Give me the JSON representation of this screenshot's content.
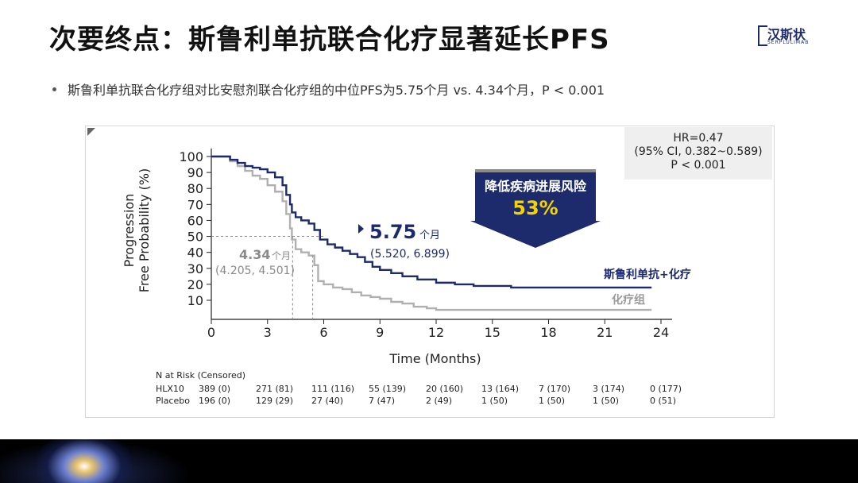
{
  "header": {
    "title": "次要终点：斯鲁利单抗联合化疗显著延长PFS",
    "logo_text": "汉斯状",
    "logo_sub": "SERPLULIMAB"
  },
  "bullet": {
    "text": "斯鲁利单抗联合化疗组对比安慰剂联合化疗组的中位PFS为5.75个月 vs. 4.34个月，P < 0.001"
  },
  "hr_box": {
    "line1": "HR=0.47",
    "line2": "(95% CI, 0.382~0.589)",
    "line3": "P  < 0.001"
  },
  "banner": {
    "line1": "降低疾病进展风险",
    "line2": "53%",
    "color": "#1d2a6b"
  },
  "colors": {
    "hlx10": "#1d2a6b",
    "placebo": "#b0b0b0",
    "label_hlx10": "#1d2a6b",
    "label_placebo": "#9a9a9a"
  },
  "chart_data": {
    "type": "line",
    "xlabel": "Time (Months)",
    "ylabel": "Progression Free Probability (%)",
    "ylabel_line1": "Progression",
    "ylabel_line2": "Free Probability (%)",
    "x_ticks": [
      0,
      3,
      6,
      9,
      12,
      15,
      18,
      21,
      24
    ],
    "y_ticks": [
      10,
      20,
      30,
      40,
      50,
      60,
      70,
      80,
      90,
      100
    ],
    "xlim": [
      0,
      24
    ],
    "ylim": [
      0,
      100
    ],
    "series": [
      {
        "name": "斯鲁利单抗+化疗",
        "x": [
          0,
          0.5,
          1.0,
          1.4,
          1.8,
          2.2,
          2.6,
          3.0,
          3.4,
          3.8,
          4.0,
          4.2,
          4.3,
          4.5,
          4.8,
          5.2,
          5.5,
          5.8,
          6.2,
          6.6,
          7.0,
          7.4,
          7.8,
          8.2,
          8.6,
          9.0,
          9.6,
          10.2,
          11.0,
          12.0,
          13.0,
          14.0,
          15.0,
          16.0,
          18.0,
          20.0,
          22.0,
          23.5
        ],
        "y": [
          100,
          100,
          98,
          96,
          94,
          93,
          92,
          90,
          87,
          82,
          76,
          70,
          65,
          62,
          60,
          58,
          54,
          48,
          45,
          43,
          41,
          39,
          37,
          34,
          31,
          29,
          27,
          25,
          23,
          21,
          20,
          19,
          19,
          18,
          18,
          18,
          18,
          18
        ]
      },
      {
        "name": "化疗组",
        "x": [
          0,
          0.5,
          1.0,
          1.4,
          1.8,
          2.2,
          2.6,
          3.0,
          3.4,
          3.8,
          4.0,
          4.2,
          4.3,
          4.5,
          4.8,
          5.2,
          5.5,
          5.7,
          6.0,
          6.5,
          7.0,
          7.5,
          8.0,
          8.5,
          9.0,
          9.6,
          10.2,
          10.8,
          11.5,
          12.0,
          15.0,
          18.0,
          21.0,
          23.5
        ],
        "y": [
          100,
          100,
          97,
          94,
          91,
          88,
          86,
          82,
          78,
          72,
          64,
          55,
          48,
          42,
          40,
          38,
          32,
          22,
          20,
          18,
          17,
          15,
          13,
          12,
          11,
          9,
          8,
          6,
          5,
          4,
          4,
          4,
          4,
          4
        ]
      }
    ],
    "annotations": {
      "hlx10_median": "5.75",
      "hlx10_median_unit": "个月",
      "hlx10_ci": "(5.520, 6.899)",
      "placebo_median": "4.34",
      "placebo_median_unit": "个月",
      "placebo_ci": "(4.205, 4.501)",
      "median_level": 50,
      "hlx10_median_x": 5.75,
      "placebo_median_x": 4.34
    },
    "risk_table": {
      "title": "N at Risk (Censored)",
      "rows": [
        {
          "label": "HLX10",
          "values": [
            "389 (0)",
            "271 (81)",
            "111 (116)",
            "55 (139)",
            "20 (160)",
            "13 (164)",
            "7 (170)",
            "3 (174)",
            "0 (177)"
          ]
        },
        {
          "label": "Placebo",
          "values": [
            "196 (0)",
            "129 (29)",
            "27 (40)",
            "7 (47)",
            "2 (49)",
            "1 (50)",
            "1 (50)",
            "1 (50)",
            "0 (51)"
          ]
        }
      ]
    }
  }
}
